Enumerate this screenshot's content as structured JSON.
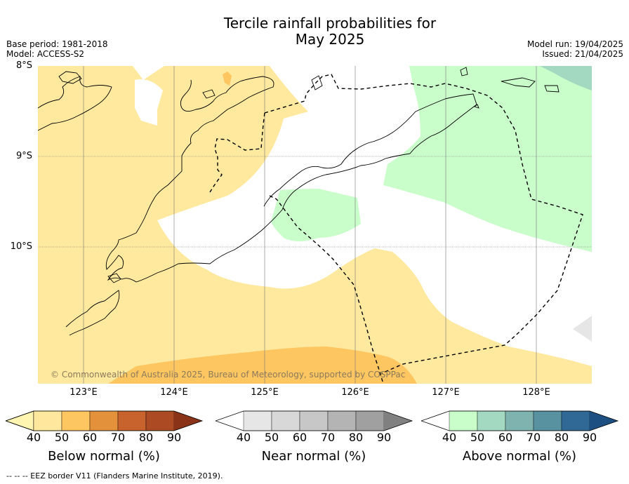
{
  "title": {
    "line1": "Tercile rainfall probabilities for",
    "line2": "May 2025"
  },
  "meta": {
    "base_period": "Base period: 1981-2018",
    "model": "Model: ACCESS-S2",
    "model_run": "Model run: 19/04/2025",
    "issued": "Issued: 21/04/2025"
  },
  "axes": {
    "lat_labels": [
      "8°S",
      "9°S",
      "10°S"
    ],
    "lon_labels": [
      "123°E",
      "124°E",
      "125°E",
      "126°E",
      "127°E",
      "128°E"
    ]
  },
  "copyright": "© Commonwealth of Australia 2025, Bureau of Meteorology, supported by COSPPac",
  "colorbars": {
    "ticks": [
      "40",
      "50",
      "60",
      "70",
      "80",
      "90"
    ],
    "below": {
      "label": "Below normal (%)",
      "colors": [
        "#fff5b0",
        "#ffe79e",
        "#fec661",
        "#e3923b",
        "#c8632e",
        "#ab4a23",
        "#8a3318"
      ]
    },
    "near": {
      "label": "Near normal (%)",
      "colors": [
        "#ffffff",
        "#e6e6e6",
        "#d8d8d8",
        "#c7c7c7",
        "#b4b4b4",
        "#a0a0a0",
        "#808080"
      ]
    },
    "above": {
      "label": "Above normal (%)",
      "colors": [
        "#ffffff",
        "#c9fdca",
        "#a3d8c1",
        "#7fb3b0",
        "#5891a0",
        "#306896",
        "#1e4f82"
      ]
    }
  },
  "footnote": "--  --  -- EEZ border V11 (Flanders Marine Institute, 2019)."
}
